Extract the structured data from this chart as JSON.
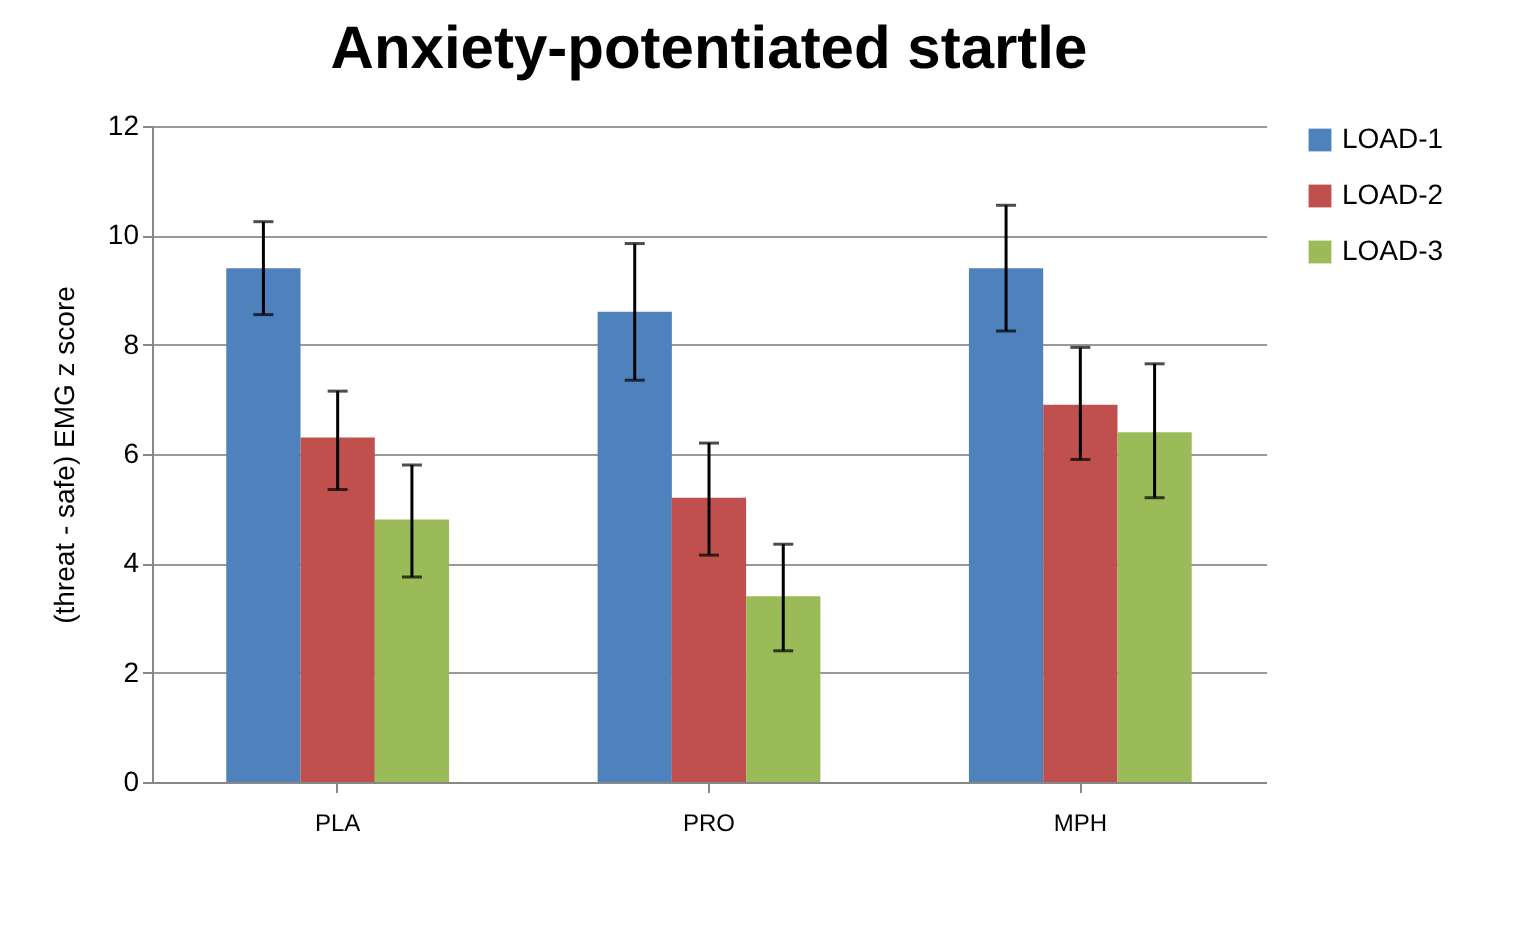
{
  "chart_data": {
    "type": "bar",
    "title": "Anxiety-potentiated startle",
    "ylabel": "(threat - safe) EMG z score",
    "categories": [
      "PLA",
      "PRO",
      "MPH"
    ],
    "series": [
      {
        "name": "LOAD-1",
        "color": "#4f81bd",
        "values": [
          9.4,
          8.6,
          9.4
        ],
        "errors": [
          [
            8.55,
            10.25
          ],
          [
            7.35,
            9.85
          ],
          [
            8.25,
            10.55
          ]
        ]
      },
      {
        "name": "LOAD-2",
        "color": "#c0504d",
        "values": [
          6.3,
          5.2,
          6.9
        ],
        "errors": [
          [
            5.35,
            7.15
          ],
          [
            4.15,
            6.2
          ],
          [
            5.9,
            7.95
          ]
        ]
      },
      {
        "name": "LOAD-3",
        "color": "#9bbb59",
        "values": [
          4.8,
          3.4,
          6.4
        ],
        "errors": [
          [
            3.75,
            5.8
          ],
          [
            2.4,
            4.35
          ],
          [
            5.2,
            7.65
          ]
        ]
      }
    ],
    "ylim": [
      0,
      12
    ],
    "yticks": [
      0,
      2,
      4,
      6,
      8,
      10,
      12
    ],
    "grid": "y",
    "legend": "right"
  }
}
